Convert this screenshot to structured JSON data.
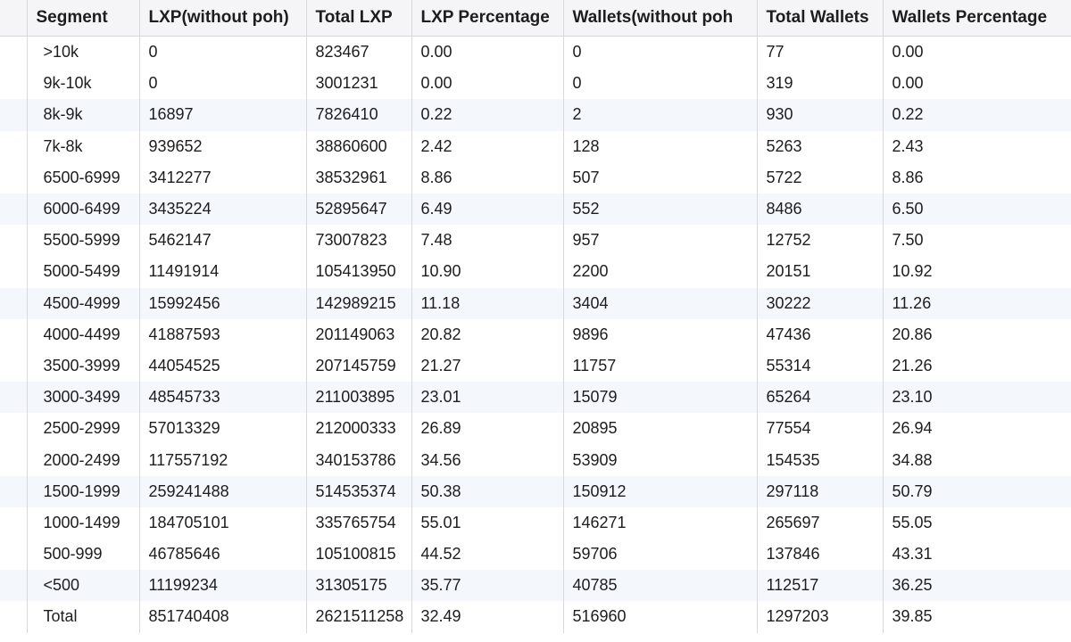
{
  "table": {
    "headers": [
      "Segment",
      "LXP(without poh)",
      "Total LXP",
      "LXP Percentage",
      "Wallets(without poh",
      "Total Wallets",
      "Wallets Percentage"
    ],
    "rows": [
      [
        ">10k",
        "0",
        "823467",
        "0.00",
        "0",
        "77",
        "0.00"
      ],
      [
        "9k-10k",
        "0",
        "3001231",
        "0.00",
        "0",
        "319",
        "0.00"
      ],
      [
        "8k-9k",
        "16897",
        "7826410",
        "0.22",
        "2",
        "930",
        "0.22"
      ],
      [
        "7k-8k",
        "939652",
        "38860600",
        "2.42",
        "128",
        "5263",
        "2.43"
      ],
      [
        "6500-6999",
        "3412277",
        "38532961",
        "8.86",
        "507",
        "5722",
        "8.86"
      ],
      [
        "6000-6499",
        "3435224",
        "52895647",
        "6.49",
        "552",
        "8486",
        "6.50"
      ],
      [
        "5500-5999",
        "5462147",
        "73007823",
        "7.48",
        "957",
        "12752",
        "7.50"
      ],
      [
        "5000-5499",
        "11491914",
        "105413950",
        "10.90",
        "2200",
        "20151",
        "10.92"
      ],
      [
        "4500-4999",
        "15992456",
        "142989215",
        "11.18",
        "3404",
        "30222",
        "11.26"
      ],
      [
        "4000-4499",
        "41887593",
        "201149063",
        "20.82",
        "9896",
        "47436",
        "20.86"
      ],
      [
        "3500-3999",
        "44054525",
        "207145759",
        "21.27",
        "11757",
        "55314",
        "21.26"
      ],
      [
        "3000-3499",
        "48545733",
        "211003895",
        "23.01",
        "15079",
        "65264",
        "23.10"
      ],
      [
        "2500-2999",
        "57013329",
        "212000333",
        "26.89",
        "20895",
        "77554",
        "26.94"
      ],
      [
        "2000-2499",
        "117557192",
        "340153786",
        "34.56",
        "53909",
        "154535",
        "34.88"
      ],
      [
        "1500-1999",
        "259241488",
        "514535374",
        "50.38",
        "150912",
        "297118",
        "50.79"
      ],
      [
        "1000-1499",
        "184705101",
        "335765754",
        "55.01",
        "146271",
        "265697",
        "55.05"
      ],
      [
        "500-999",
        "46785646",
        "105100815",
        "44.52",
        "59706",
        "137846",
        "43.31"
      ],
      [
        "<500",
        "11199234",
        "31305175",
        "35.77",
        "40785",
        "112517",
        "36.25"
      ],
      [
        "Total",
        "851740408",
        "2621511258",
        "32.49",
        "516960",
        "1297203",
        "39.85"
      ]
    ],
    "highlighted_rows": [
      2,
      5,
      8,
      11,
      14,
      17
    ]
  }
}
